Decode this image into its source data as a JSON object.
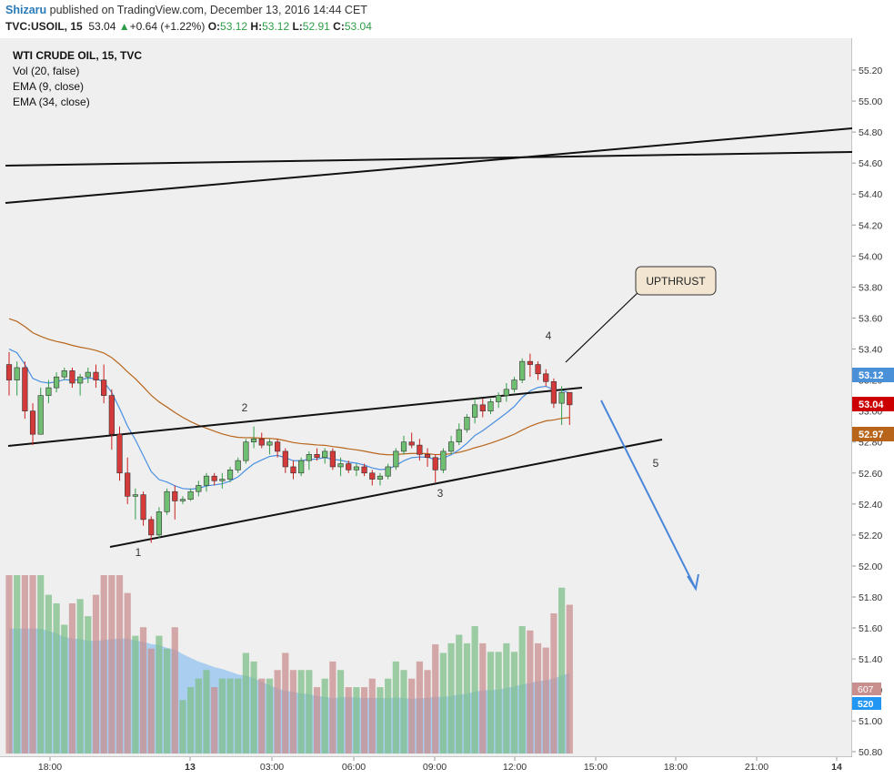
{
  "header": {
    "author": "Shizaru",
    "published": "published on TradingView.com, December 13, 2016 14:44 CET",
    "symbol": "TVC:USOIL, 15",
    "last": "53.04",
    "change": "+0.64 (+1.22%)",
    "o_label": "O:",
    "o_val": "53.12",
    "h_label": "H:",
    "h_val": "53.12",
    "l_label": "L:",
    "l_val": "52.91",
    "c_label": "C:",
    "c_val": "53.04"
  },
  "legend": [
    "WTI CRUDE OIL, 15, TVC",
    "Vol (20, false)",
    "EMA (9, close)",
    "EMA (34, close)"
  ],
  "annotations": {
    "callout": "UPTHRUST",
    "labels": [
      "1",
      "2",
      "3",
      "4",
      "5"
    ]
  },
  "price_badges": [
    {
      "value": "53.12",
      "color": "#4a90d9"
    },
    {
      "value": "53.04",
      "color": "#cc0000"
    },
    {
      "value": "52.97",
      "color": "#b8651b"
    }
  ],
  "volume_badges": [
    {
      "value": "607",
      "color": "#c98f8f"
    },
    {
      "value": "520",
      "color": "#2196f3"
    }
  ],
  "colors": {
    "up": "#2e9e46",
    "down": "#cc1f1f",
    "ema9": "#4a90e2",
    "ema34": "#b8651b",
    "vol_up": "#7fbf8a",
    "vol_down": "#c98f8f",
    "vol_ma": "#9cc8ef",
    "plot_bg": "#efefef",
    "arrow": "#4a86d9"
  },
  "chart_data": {
    "type": "candlestick",
    "price_axis": {
      "ticks": [
        "55.20",
        "55.00",
        "54.80",
        "54.60",
        "54.40",
        "54.20",
        "54.00",
        "53.80",
        "53.60",
        "53.40",
        "53.20",
        "53.00",
        "52.80",
        "52.60",
        "52.40",
        "52.20",
        "52.00",
        "51.80",
        "51.60",
        "51.40",
        "51.20",
        "51.00",
        "50.80"
      ]
    },
    "time_axis": {
      "ticks": [
        "18:00",
        "13",
        "03:00",
        "06:00",
        "09:00",
        "12:00",
        "15:00",
        "18:00",
        "21:00",
        "14"
      ]
    },
    "candles": [
      [
        53.3,
        53.38,
        53.1,
        53.2
      ],
      [
        53.2,
        53.32,
        53.1,
        53.28
      ],
      [
        53.28,
        53.32,
        52.95,
        53.0
      ],
      [
        53.0,
        53.05,
        52.78,
        52.85
      ],
      [
        52.85,
        53.15,
        52.85,
        53.1
      ],
      [
        53.1,
        53.2,
        53.05,
        53.15
      ],
      [
        53.15,
        53.25,
        53.12,
        53.22
      ],
      [
        53.22,
        53.28,
        53.2,
        53.26
      ],
      [
        53.26,
        53.28,
        53.15,
        53.18
      ],
      [
        53.18,
        53.24,
        53.1,
        53.22
      ],
      [
        53.22,
        53.28,
        53.18,
        53.25
      ],
      [
        53.25,
        53.3,
        53.15,
        53.2
      ],
      [
        53.2,
        53.3,
        53.05,
        53.1
      ],
      [
        53.1,
        53.14,
        52.75,
        52.85
      ],
      [
        52.85,
        52.9,
        52.55,
        52.6
      ],
      [
        52.6,
        52.7,
        52.4,
        52.45
      ],
      [
        52.45,
        52.5,
        52.3,
        52.46
      ],
      [
        52.46,
        52.48,
        52.26,
        52.3
      ],
      [
        52.3,
        52.32,
        52.15,
        52.2
      ],
      [
        52.2,
        52.38,
        52.18,
        52.35
      ],
      [
        52.35,
        52.5,
        52.33,
        52.48
      ],
      [
        52.48,
        52.52,
        52.3,
        52.42
      ],
      [
        52.42,
        52.45,
        52.4,
        52.43
      ],
      [
        52.43,
        52.5,
        52.42,
        52.48
      ],
      [
        52.48,
        52.55,
        52.45,
        52.52
      ],
      [
        52.52,
        52.6,
        52.48,
        52.58
      ],
      [
        52.58,
        52.6,
        52.52,
        52.55
      ],
      [
        52.55,
        52.6,
        52.5,
        52.56
      ],
      [
        52.56,
        52.64,
        52.54,
        52.62
      ],
      [
        52.62,
        52.7,
        52.6,
        52.68
      ],
      [
        52.68,
        52.82,
        52.66,
        52.8
      ],
      [
        52.8,
        52.9,
        52.76,
        52.82
      ],
      [
        52.82,
        52.86,
        52.76,
        52.78
      ],
      [
        52.78,
        52.82,
        52.72,
        52.8
      ],
      [
        52.8,
        52.82,
        52.7,
        52.74
      ],
      [
        52.74,
        52.76,
        52.6,
        52.64
      ],
      [
        52.64,
        52.68,
        52.56,
        52.6
      ],
      [
        52.6,
        52.7,
        52.58,
        52.68
      ],
      [
        52.68,
        52.74,
        52.62,
        52.72
      ],
      [
        52.72,
        52.76,
        52.68,
        52.7
      ],
      [
        52.7,
        52.76,
        52.66,
        52.74
      ],
      [
        52.74,
        52.76,
        52.62,
        52.64
      ],
      [
        52.64,
        52.7,
        52.58,
        52.66
      ],
      [
        52.66,
        52.68,
        52.6,
        52.62
      ],
      [
        52.62,
        52.66,
        52.58,
        52.64
      ],
      [
        52.64,
        52.66,
        52.58,
        52.6
      ],
      [
        52.6,
        52.62,
        52.52,
        52.56
      ],
      [
        52.56,
        52.6,
        52.52,
        52.58
      ],
      [
        52.58,
        52.66,
        52.56,
        52.64
      ],
      [
        52.64,
        52.76,
        52.62,
        52.74
      ],
      [
        52.74,
        52.84,
        52.72,
        52.8
      ],
      [
        52.8,
        52.86,
        52.76,
        52.78
      ],
      [
        52.78,
        52.82,
        52.68,
        52.72
      ],
      [
        52.72,
        52.76,
        52.64,
        52.7
      ],
      [
        52.7,
        52.72,
        52.54,
        52.62
      ],
      [
        52.62,
        52.76,
        52.6,
        52.74
      ],
      [
        52.74,
        52.84,
        52.72,
        52.8
      ],
      [
        52.8,
        52.92,
        52.78,
        52.88
      ],
      [
        52.88,
        52.98,
        52.86,
        52.96
      ],
      [
        52.96,
        53.08,
        52.92,
        53.04
      ],
      [
        53.04,
        53.08,
        52.96,
        53.0
      ],
      [
        53.0,
        53.08,
        52.98,
        53.06
      ],
      [
        53.06,
        53.12,
        53.02,
        53.1
      ],
      [
        53.1,
        53.18,
        53.06,
        53.14
      ],
      [
        53.14,
        53.22,
        53.12,
        53.2
      ],
      [
        53.2,
        53.34,
        53.18,
        53.32
      ],
      [
        53.32,
        53.37,
        53.22,
        53.3
      ],
      [
        53.3,
        53.32,
        53.2,
        53.24
      ],
      [
        53.24,
        53.27,
        53.16,
        53.19
      ],
      [
        53.19,
        53.21,
        53.02,
        53.05
      ],
      [
        53.05,
        53.16,
        52.91,
        53.12
      ],
      [
        53.12,
        53.12,
        52.91,
        53.04
      ]
    ],
    "vol_axis": {
      "label": "50.80"
    }
  }
}
